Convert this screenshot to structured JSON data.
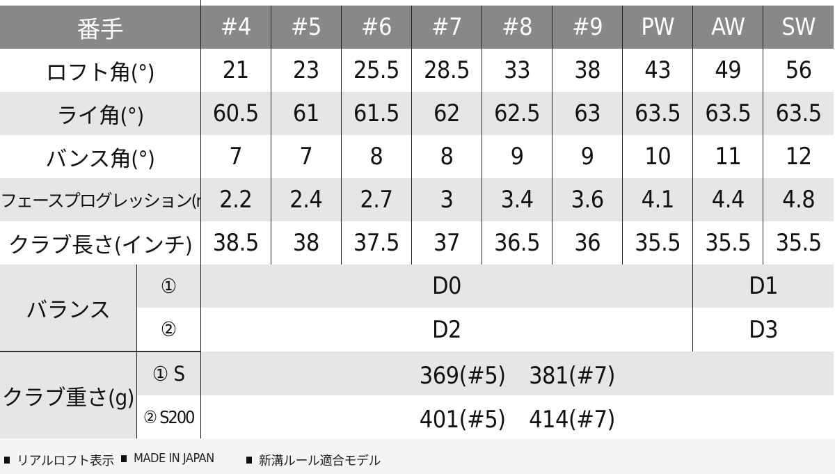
{
  "header": {
    "label": "番手",
    "columns": [
      "#4",
      "#5",
      "#6",
      "#7",
      "#8",
      "#9",
      "PW",
      "AW",
      "SW"
    ]
  },
  "rows": [
    {
      "label": "ロフト角(°)",
      "values": [
        "21",
        "23",
        "25.5",
        "28.5",
        "33",
        "38",
        "43",
        "49",
        "56"
      ]
    },
    {
      "label": "ライ角(°)",
      "values": [
        "60.5",
        "61",
        "61.5",
        "62",
        "62.5",
        "63",
        "63.5",
        "63.5",
        "63.5"
      ]
    },
    {
      "label": "バンス角(°)",
      "values": [
        "7",
        "7",
        "8",
        "8",
        "9",
        "9",
        "10",
        "11",
        "12"
      ]
    },
    {
      "label": "フェースプログレッション(mm)",
      "values": [
        "2.2",
        "2.4",
        "2.7",
        "3",
        "3.4",
        "3.6",
        "4.1",
        "4.4",
        "4.8"
      ]
    },
    {
      "label": "クラブ長さ(インチ)",
      "values": [
        "38.5",
        "38",
        "37.5",
        "37",
        "36.5",
        "36",
        "35.5",
        "35.5",
        "35.5"
      ]
    }
  ],
  "balance": {
    "label": "バランス",
    "rows": [
      {
        "sub": "①",
        "main": "D0",
        "wedge": "D1"
      },
      {
        "sub": "②",
        "main": "D2",
        "wedge": "D3"
      }
    ]
  },
  "weight": {
    "label": "クラブ重さ(g)",
    "rows": [
      {
        "sub": "① S",
        "value": "369(#5)　381(#7)"
      },
      {
        "sub": "② S200",
        "value": "401(#5)　414(#7)"
      }
    ]
  },
  "footer": {
    "notes": [
      "リアルロフト表示",
      "MADE IN JAPAN",
      "新溝ルール適合モデル"
    ]
  },
  "colors": {
    "header_bg": "#888888",
    "stripe_bg": "#e6e6e6",
    "footer_bg": "#f5f5f5"
  }
}
